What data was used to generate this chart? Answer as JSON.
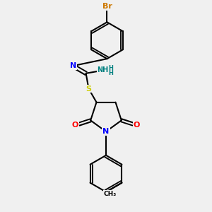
{
  "background_color": "#f0f0f0",
  "bond_color": "#000000",
  "bond_width": 1.5,
  "atom_colors": {
    "N": "#0000ff",
    "O": "#ff0000",
    "S": "#cccc00",
    "Br": "#cc7700",
    "C": "#000000",
    "H": "#008080"
  },
  "font_size": 7.5
}
